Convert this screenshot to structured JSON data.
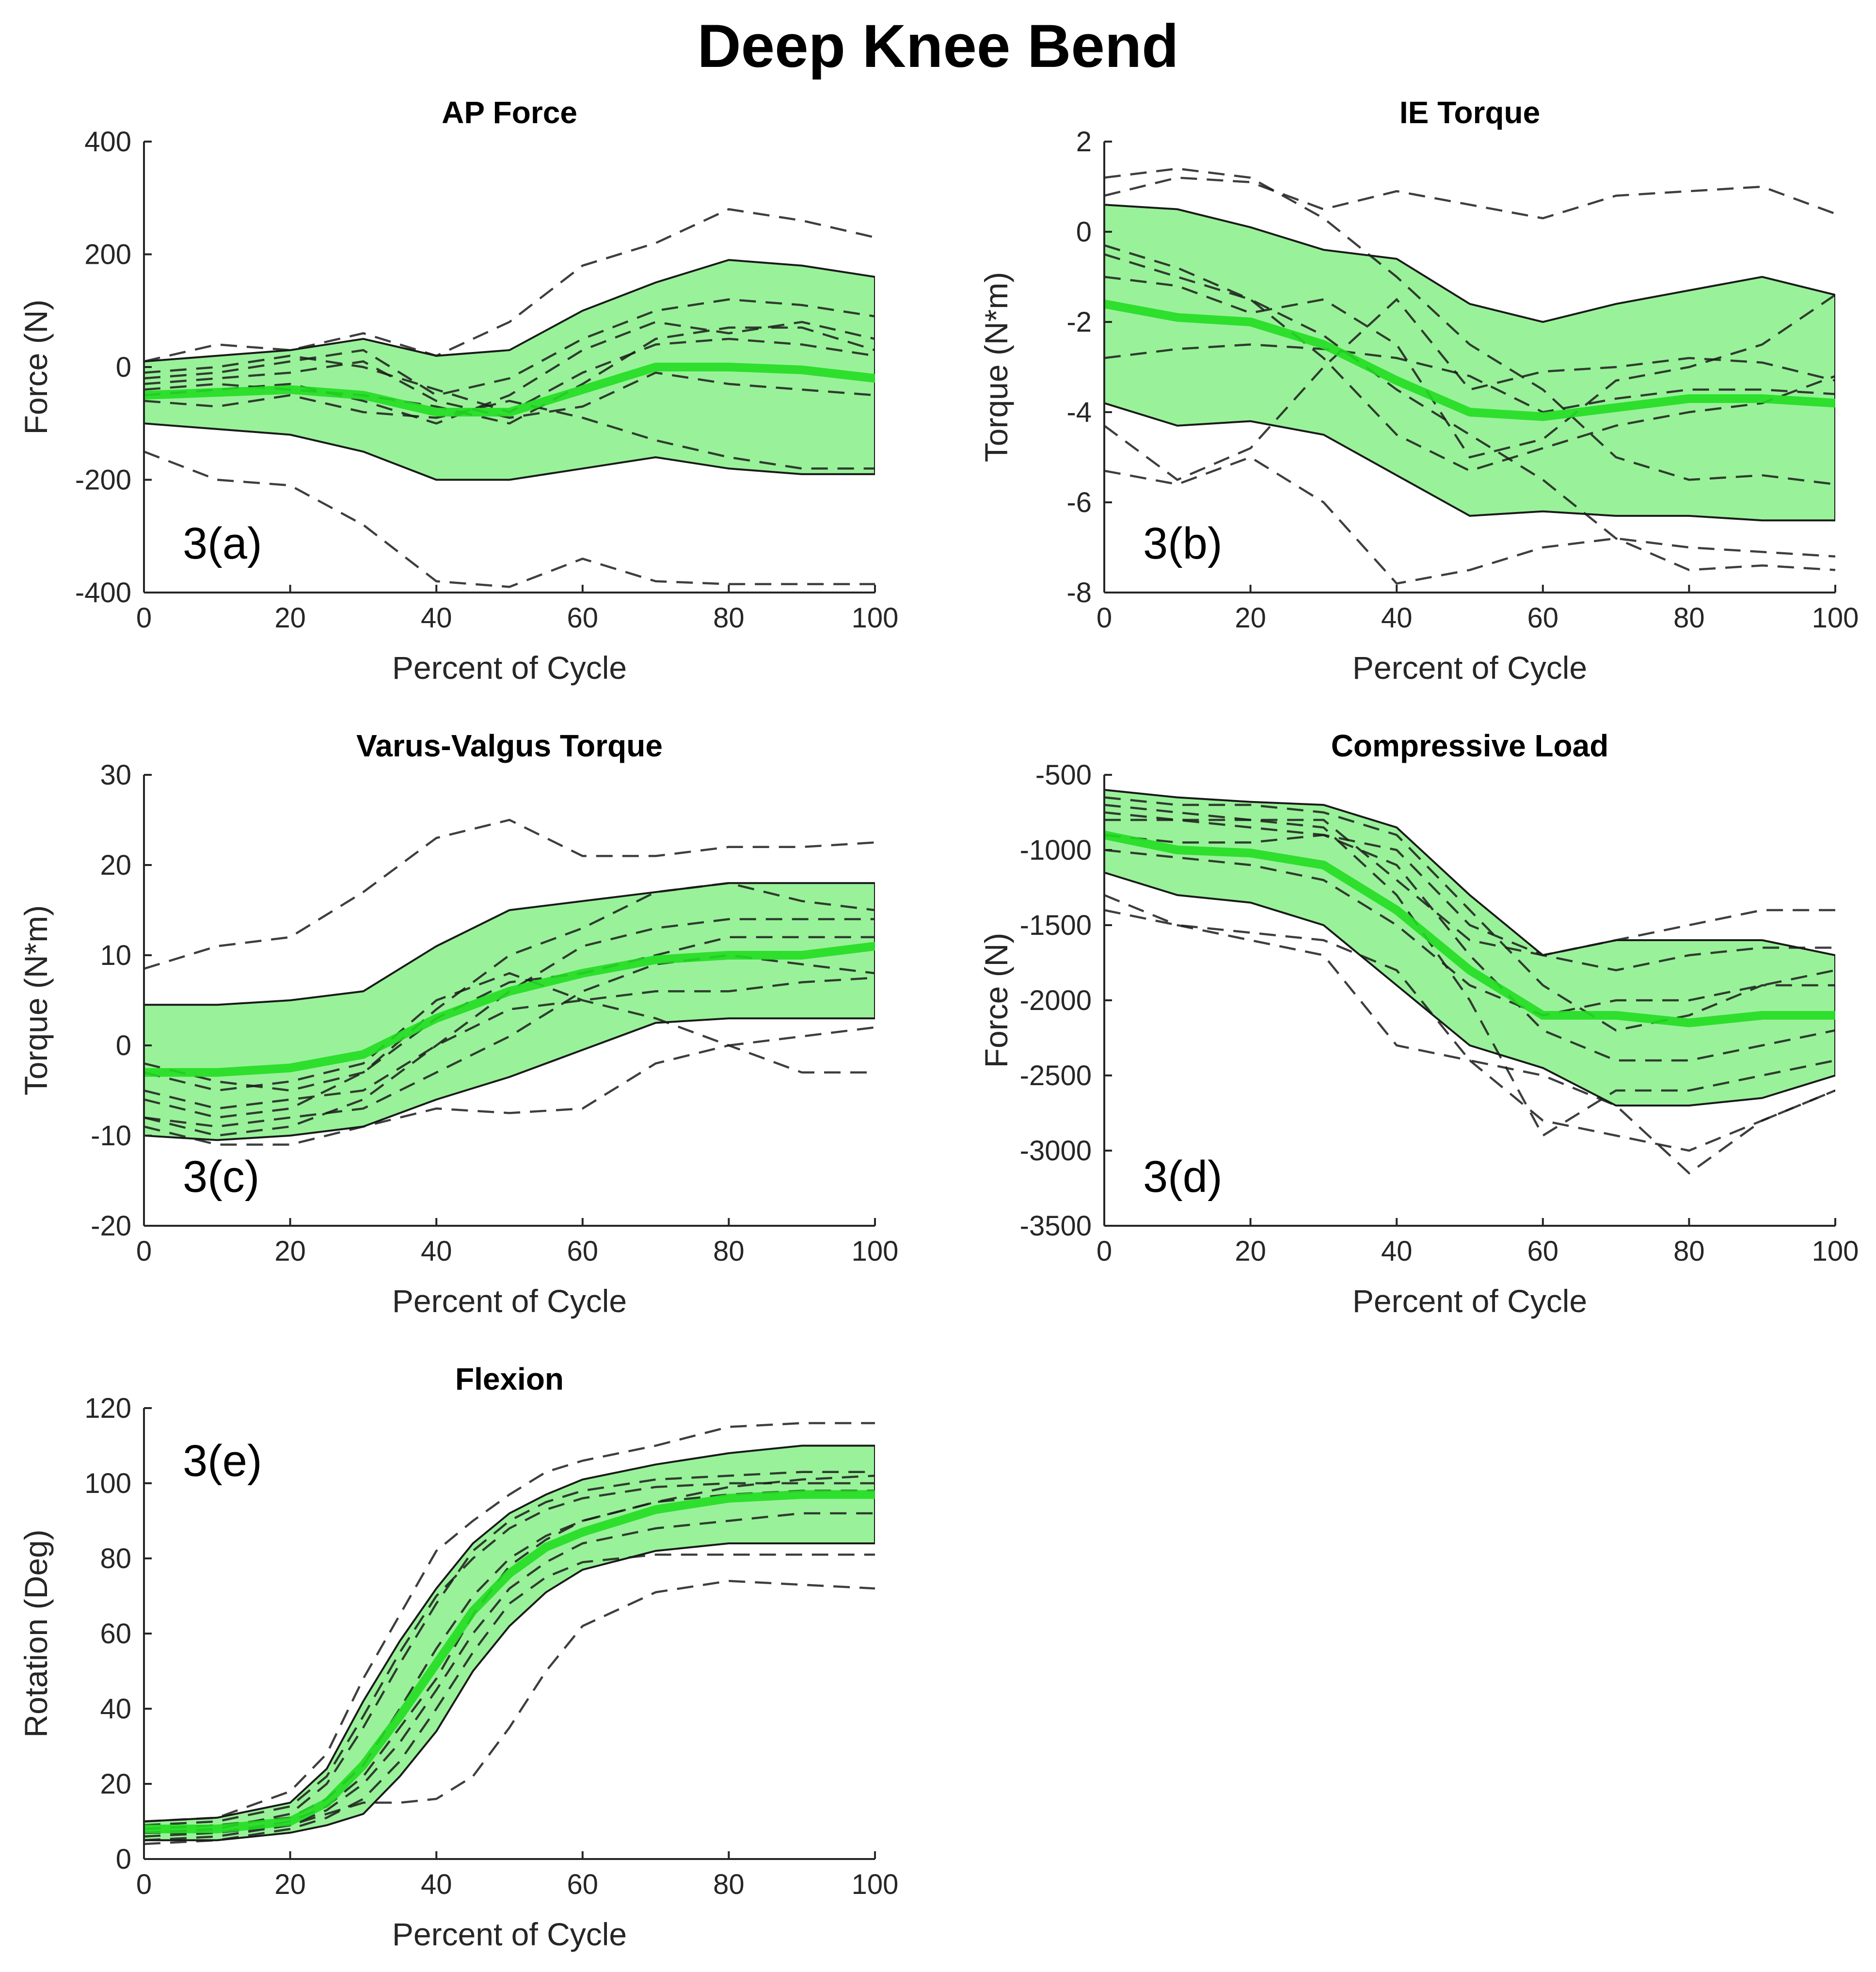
{
  "figure": {
    "title": "Deep Knee Bend",
    "colors": {
      "band": "#99f299",
      "mean": "#22dd22",
      "trial": "#1c1c1c",
      "axis": "#262626"
    }
  },
  "chart_data": [
    {
      "id": "a",
      "type": "line",
      "title": "AP Force",
      "panel_label": "3(a)",
      "xlabel": "Percent of Cycle",
      "ylabel": "Force (N)",
      "xlim": [
        0,
        100
      ],
      "ylim": [
        -400,
        400
      ],
      "xticks": [
        0,
        20,
        40,
        60,
        80,
        100
      ],
      "yticks": [
        -400,
        -200,
        0,
        200,
        400
      ],
      "x": [
        0,
        10,
        20,
        30,
        40,
        50,
        60,
        70,
        80,
        90,
        100
      ],
      "mean": [
        -50,
        -45,
        -40,
        -50,
        -80,
        -80,
        -40,
        0,
        0,
        -5,
        -20
      ],
      "band_upper": [
        10,
        20,
        30,
        50,
        20,
        30,
        100,
        150,
        190,
        180,
        160
      ],
      "band_lower": [
        -100,
        -110,
        -120,
        -150,
        -200,
        -200,
        -180,
        -160,
        -180,
        -190,
        -190
      ],
      "trials": [
        [
          -150,
          -200,
          -210,
          -280,
          -380,
          -390,
          -340,
          -380,
          -385,
          -385,
          -385
        ],
        [
          10,
          40,
          30,
          60,
          20,
          80,
          180,
          220,
          280,
          260,
          230
        ],
        [
          -20,
          -10,
          10,
          30,
          -50,
          -20,
          50,
          100,
          120,
          110,
          90
        ],
        [
          -50,
          -40,
          -30,
          -60,
          -100,
          -50,
          30,
          80,
          60,
          80,
          50
        ],
        [
          -30,
          -20,
          -10,
          10,
          -60,
          -90,
          -70,
          -10,
          -30,
          -40,
          -50
        ],
        [
          -60,
          -70,
          -50,
          -80,
          -90,
          -60,
          -90,
          -130,
          -160,
          -180,
          -180
        ],
        [
          -10,
          0,
          20,
          0,
          -40,
          -80,
          -10,
          40,
          50,
          40,
          20
        ],
        [
          -40,
          -30,
          -40,
          -50,
          -70,
          -100,
          -30,
          50,
          70,
          70,
          30
        ]
      ]
    },
    {
      "id": "b",
      "type": "line",
      "title": "IE Torque",
      "panel_label": "3(b)",
      "xlabel": "Percent of Cycle",
      "ylabel": "Torque (N*m)",
      "xlim": [
        0,
        100
      ],
      "ylim": [
        -8,
        2
      ],
      "xticks": [
        0,
        20,
        40,
        60,
        80,
        100
      ],
      "yticks": [
        -8,
        -6,
        -4,
        -2,
        0,
        2
      ],
      "x": [
        0,
        10,
        20,
        30,
        40,
        50,
        60,
        70,
        80,
        90,
        100
      ],
      "mean": [
        -1.6,
        -1.9,
        -2.0,
        -2.5,
        -3.3,
        -4.0,
        -4.1,
        -3.9,
        -3.7,
        -3.7,
        -3.8
      ],
      "band_upper": [
        0.6,
        0.5,
        0.1,
        -0.4,
        -0.6,
        -1.6,
        -2.0,
        -1.6,
        -1.3,
        -1.0,
        -1.4
      ],
      "band_lower": [
        -3.8,
        -4.3,
        -4.2,
        -4.5,
        -5.4,
        -6.3,
        -6.2,
        -6.3,
        -6.3,
        -6.4,
        -6.4
      ],
      "trials": [
        [
          1.2,
          1.4,
          1.2,
          0.3,
          -1.0,
          -2.5,
          -3.5,
          -5.0,
          -5.5,
          -5.4,
          -5.6
        ],
        [
          0.8,
          1.2,
          1.1,
          0.5,
          0.9,
          0.6,
          0.3,
          0.8,
          0.9,
          1.0,
          0.4
        ],
        [
          -0.5,
          -1.0,
          -1.5,
          -2.3,
          -3.5,
          -4.5,
          -5.5,
          -6.8,
          -7.5,
          -7.4,
          -7.5
        ],
        [
          -4.3,
          -5.5,
          -4.8,
          -3.0,
          -1.5,
          -3.5,
          -3.1,
          -3.0,
          -2.8,
          -2.9,
          -3.3
        ],
        [
          -5.3,
          -5.6,
          -5.0,
          -6.0,
          -7.8,
          -7.5,
          -7.0,
          -6.8,
          -7.0,
          -7.1,
          -7.2
        ],
        [
          -2.8,
          -2.6,
          -2.5,
          -2.6,
          -2.8,
          -3.2,
          -4.0,
          -3.7,
          -3.5,
          -3.5,
          -3.6
        ],
        [
          -1.0,
          -1.2,
          -1.8,
          -1.5,
          -2.5,
          -5.0,
          -4.6,
          -3.3,
          -3.0,
          -2.5,
          -1.4
        ],
        [
          -0.3,
          -0.8,
          -1.5,
          -2.8,
          -4.5,
          -5.3,
          -4.8,
          -4.3,
          -4.0,
          -3.8,
          -3.2
        ]
      ]
    },
    {
      "id": "c",
      "type": "line",
      "title": "Varus-Valgus Torque",
      "panel_label": "3(c)",
      "xlabel": "Percent of Cycle",
      "ylabel": "Torque (N*m)",
      "xlim": [
        0,
        100
      ],
      "ylim": [
        -20,
        30
      ],
      "xticks": [
        0,
        20,
        40,
        60,
        80,
        100
      ],
      "yticks": [
        -20,
        -10,
        0,
        10,
        20,
        30
      ],
      "x": [
        0,
        10,
        20,
        30,
        40,
        50,
        60,
        70,
        80,
        90,
        100
      ],
      "mean": [
        -3,
        -3,
        -2.5,
        -1,
        3,
        6,
        8,
        9.5,
        10,
        10,
        11
      ],
      "band_upper": [
        4.5,
        4.5,
        5,
        6,
        11,
        15,
        16,
        17,
        18,
        18,
        18
      ],
      "band_lower": [
        -10,
        -10.5,
        -10,
        -9,
        -6,
        -3.5,
        -0.5,
        2.5,
        3,
        3,
        3
      ],
      "trials": [
        [
          8.5,
          11,
          12,
          17,
          23,
          25,
          21,
          21,
          22,
          22,
          22.5
        ],
        [
          -2,
          -4,
          -5,
          -3,
          4,
          10,
          13,
          17,
          18,
          16,
          15
        ],
        [
          -8,
          -10,
          -9,
          -6,
          0,
          6,
          11,
          13,
          14,
          14,
          14
        ],
        [
          -6,
          -8,
          -7,
          -3,
          3,
          7,
          8,
          10,
          12,
          12,
          12
        ],
        [
          -9,
          -11,
          -11,
          -9,
          -7,
          -7.5,
          -7,
          -2,
          0,
          -3,
          -3
        ],
        [
          -5,
          -7,
          -6,
          -5,
          0,
          4,
          5,
          6,
          6,
          7,
          7.5
        ],
        [
          -3,
          -5,
          -4,
          -2,
          5,
          8,
          5,
          3,
          0,
          1,
          2
        ],
        [
          -8,
          -9,
          -8,
          -7,
          -3,
          1,
          6,
          9,
          10,
          9,
          8
        ]
      ]
    },
    {
      "id": "d",
      "type": "line",
      "title": "Compressive Load",
      "panel_label": "3(d)",
      "xlabel": "Percent of Cycle",
      "ylabel": "Force (N)",
      "xlim": [
        0,
        100
      ],
      "ylim": [
        -3500,
        -500
      ],
      "xticks": [
        0,
        20,
        40,
        60,
        80,
        100
      ],
      "yticks": [
        -3500,
        -3000,
        -2500,
        -2000,
        -1500,
        -1000,
        -500
      ],
      "x": [
        0,
        10,
        20,
        30,
        40,
        50,
        60,
        70,
        80,
        90,
        100
      ],
      "mean": [
        -900,
        -1000,
        -1020,
        -1100,
        -1400,
        -1800,
        -2100,
        -2100,
        -2150,
        -2100,
        -2100
      ],
      "band_upper": [
        -600,
        -650,
        -680,
        -700,
        -850,
        -1300,
        -1700,
        -1600,
        -1600,
        -1600,
        -1700
      ],
      "band_lower": [
        -1150,
        -1300,
        -1350,
        -1500,
        -1900,
        -2300,
        -2450,
        -2700,
        -2700,
        -2650,
        -2500
      ],
      "trials": [
        [
          -1300,
          -1500,
          -1600,
          -1700,
          -2300,
          -2400,
          -2800,
          -2900,
          -3000,
          -2800,
          -2600
        ],
        [
          -700,
          -750,
          -800,
          -850,
          -1300,
          -2000,
          -2900,
          -2600,
          -2600,
          -2500,
          -2400
        ],
        [
          -1400,
          -1500,
          -1550,
          -1600,
          -1800,
          -2400,
          -2500,
          -2700,
          -3150,
          -2800,
          -2600
        ],
        [
          -800,
          -800,
          -850,
          -900,
          -1000,
          -1500,
          -1700,
          -1600,
          -1500,
          -1400,
          -1400
        ],
        [
          -650,
          -700,
          -700,
          -750,
          -900,
          -1400,
          -1900,
          -2200,
          -2100,
          -1900,
          -1900
        ],
        [
          -900,
          -950,
          -950,
          -900,
          -1100,
          -1700,
          -2200,
          -2400,
          -2400,
          -2300,
          -2200
        ],
        [
          -750,
          -800,
          -800,
          -800,
          -1200,
          -1600,
          -1700,
          -1800,
          -1700,
          -1650,
          -1650
        ],
        [
          -1000,
          -1050,
          -1100,
          -1200,
          -1500,
          -1900,
          -2100,
          -2000,
          -2000,
          -1900,
          -1800
        ]
      ]
    },
    {
      "id": "e",
      "type": "line",
      "title": "Flexion",
      "panel_label": "3(e)",
      "xlabel": "Percent of Cycle",
      "ylabel": "Rotation (Deg)",
      "xlim": [
        0,
        100
      ],
      "ylim": [
        0,
        120
      ],
      "xticks": [
        0,
        20,
        40,
        60,
        80,
        100
      ],
      "yticks": [
        0,
        20,
        40,
        60,
        80,
        100,
        120
      ],
      "x": [
        0,
        10,
        20,
        25,
        30,
        35,
        40,
        45,
        50,
        55,
        60,
        70,
        80,
        90,
        100
      ],
      "mean": [
        8,
        8,
        10,
        15,
        25,
        38,
        52,
        66,
        76,
        83,
        87,
        93,
        96,
        97,
        97
      ],
      "band_upper": [
        10,
        11,
        15,
        24,
        42,
        58,
        72,
        84,
        92,
        97,
        101,
        105,
        108,
        110,
        110
      ],
      "band_lower": [
        5,
        5,
        7,
        9,
        12,
        22,
        34,
        50,
        62,
        71,
        77,
        82,
        84,
        84,
        84
      ],
      "trials": [
        [
          10,
          11,
          18,
          28,
          48,
          65,
          82,
          90,
          97,
          103,
          106,
          110,
          115,
          116,
          116
        ],
        [
          5,
          6,
          9,
          12,
          15,
          15,
          16,
          22,
          35,
          50,
          62,
          71,
          74,
          73,
          72
        ],
        [
          7,
          8,
          12,
          20,
          35,
          52,
          68,
          82,
          90,
          95,
          98,
          101,
          102,
          103,
          103
        ],
        [
          8,
          9,
          11,
          16,
          25,
          40,
          56,
          70,
          80,
          86,
          90,
          95,
          99,
          101,
          102
        ],
        [
          6,
          7,
          9,
          13,
          20,
          31,
          45,
          60,
          72,
          79,
          84,
          88,
          90,
          92,
          92
        ],
        [
          4,
          5,
          8,
          11,
          16,
          26,
          40,
          55,
          68,
          75,
          79,
          81,
          81,
          81,
          81
        ],
        [
          9,
          10,
          14,
          22,
          38,
          55,
          70,
          80,
          88,
          93,
          96,
          99,
          100,
          100,
          100
        ],
        [
          7,
          7,
          10,
          14,
          22,
          35,
          48,
          65,
          78,
          85,
          90,
          95,
          97,
          98,
          98
        ]
      ]
    }
  ]
}
